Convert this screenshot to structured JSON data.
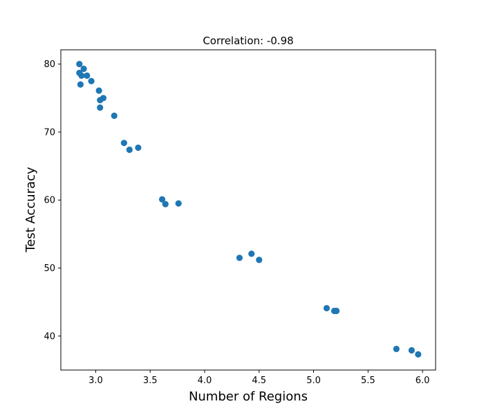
{
  "chart_data": {
    "type": "scatter",
    "title": "Correlation: -0.98",
    "xlabel": "Number of Regions",
    "ylabel": "Test Accuracy",
    "xlim": [
      2.68,
      6.12
    ],
    "ylim": [
      35.0,
      82.1
    ],
    "x_ticks": [
      3.0,
      3.5,
      4.0,
      4.5,
      5.0,
      5.5,
      6.0
    ],
    "x_tick_labels": [
      "3.0",
      "3.5",
      "4.0",
      "4.5",
      "5.0",
      "5.5",
      "6.0"
    ],
    "y_ticks": [
      40,
      50,
      60,
      70,
      80
    ],
    "y_tick_labels": [
      "40",
      "50",
      "60",
      "70",
      "80"
    ],
    "grid": false,
    "color": "#1f77b4",
    "points": [
      {
        "x": 2.85,
        "y": 80.0
      },
      {
        "x": 2.85,
        "y": 78.7
      },
      {
        "x": 2.87,
        "y": 78.3
      },
      {
        "x": 2.89,
        "y": 79.3
      },
      {
        "x": 2.92,
        "y": 78.3
      },
      {
        "x": 2.86,
        "y": 77.0
      },
      {
        "x": 2.96,
        "y": 77.5
      },
      {
        "x": 3.03,
        "y": 76.1
      },
      {
        "x": 3.04,
        "y": 74.7
      },
      {
        "x": 3.07,
        "y": 75.0
      },
      {
        "x": 3.04,
        "y": 73.6
      },
      {
        "x": 3.17,
        "y": 72.4
      },
      {
        "x": 3.26,
        "y": 68.4
      },
      {
        "x": 3.31,
        "y": 67.4
      },
      {
        "x": 3.39,
        "y": 67.7
      },
      {
        "x": 3.61,
        "y": 60.1
      },
      {
        "x": 3.64,
        "y": 59.4
      },
      {
        "x": 3.76,
        "y": 59.5
      },
      {
        "x": 4.32,
        "y": 51.5
      },
      {
        "x": 4.43,
        "y": 52.1
      },
      {
        "x": 4.5,
        "y": 51.2
      },
      {
        "x": 5.12,
        "y": 44.1
      },
      {
        "x": 5.19,
        "y": 43.7
      },
      {
        "x": 5.21,
        "y": 43.7
      },
      {
        "x": 5.76,
        "y": 38.1
      },
      {
        "x": 5.9,
        "y": 37.9
      },
      {
        "x": 5.96,
        "y": 37.3
      }
    ]
  }
}
